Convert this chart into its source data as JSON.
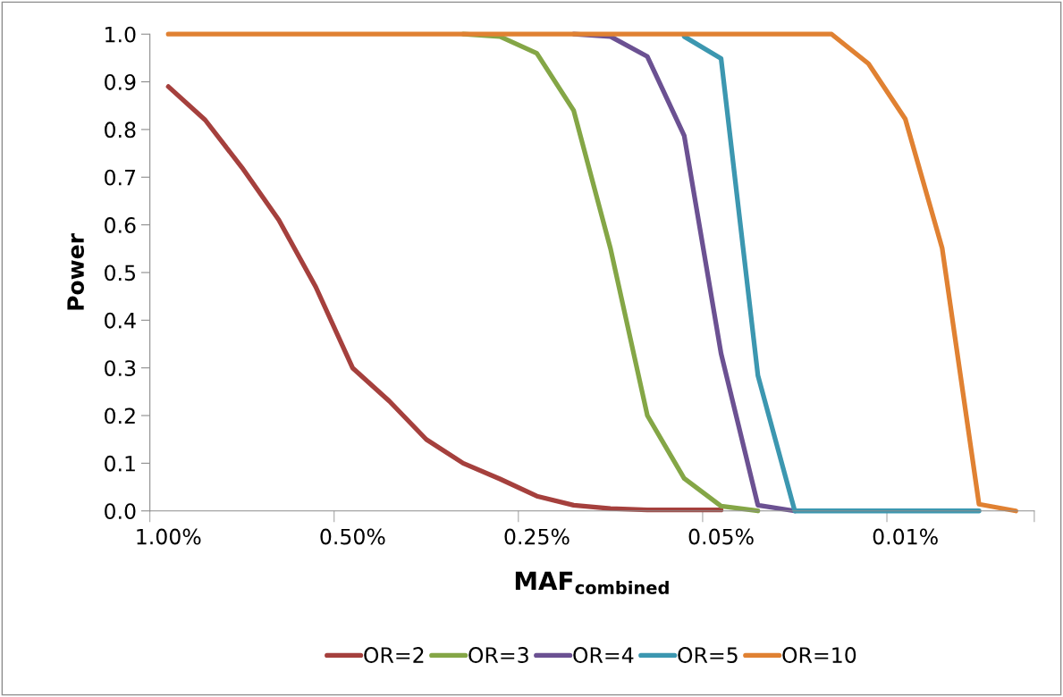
{
  "chart_data": {
    "type": "line",
    "xlabel": "MAF$_{combined}$",
    "ylabel": "Power",
    "categories": [
      "1.00%",
      null,
      null,
      null,
      null,
      "0.50%",
      null,
      null,
      null,
      null,
      "0.25%",
      null,
      null,
      null,
      null,
      "0.05%",
      null,
      null,
      null,
      null,
      "0.01%",
      null,
      null,
      null
    ],
    "series": [
      {
        "name": "OR=2",
        "color": "#a5403d",
        "values": [
          0.89,
          0.82,
          0.72,
          0.61,
          0.47,
          0.3,
          0.23,
          0.15,
          0.1,
          0.067,
          0.031,
          0.012,
          0.005,
          0.002,
          0.002,
          0.002,
          null,
          null,
          null,
          null,
          null,
          null,
          null,
          null
        ]
      },
      {
        "name": "OR=3",
        "color": "#84a646",
        "values": [
          null,
          null,
          null,
          null,
          null,
          null,
          null,
          null,
          1.0,
          0.995,
          0.96,
          0.84,
          0.55,
          0.2,
          0.068,
          0.01,
          0.0,
          null,
          null,
          null,
          null,
          null,
          null,
          null
        ]
      },
      {
        "name": "OR=4",
        "color": "#6b5192",
        "values": [
          null,
          null,
          null,
          null,
          null,
          null,
          null,
          null,
          null,
          null,
          null,
          1.0,
          0.995,
          0.953,
          0.787,
          0.33,
          0.012,
          0.0,
          null,
          null,
          null,
          null,
          null,
          null
        ]
      },
      {
        "name": "OR=5",
        "color": "#3c97b0",
        "values": [
          null,
          null,
          null,
          null,
          null,
          null,
          null,
          null,
          null,
          null,
          null,
          null,
          null,
          null,
          0.995,
          0.949,
          0.284,
          0.0,
          0.0,
          0.0,
          0.0,
          0.0,
          0.0,
          null
        ]
      },
      {
        "name": "OR=10",
        "color": "#e08132",
        "values": [
          1.0,
          1.0,
          1.0,
          1.0,
          1.0,
          1.0,
          1.0,
          1.0,
          1.0,
          1.0,
          1.0,
          1.0,
          1.0,
          1.0,
          1.0,
          1.0,
          1.0,
          1.0,
          1.0,
          0.938,
          0.822,
          0.551,
          0.014,
          0.0
        ]
      }
    ],
    "ylim": [
      0,
      1.0
    ],
    "yticks": [
      {
        "value": 0,
        "label": "0.0"
      },
      {
        "value": 0.1,
        "label": "0.1"
      },
      {
        "value": 0.2,
        "label": "0.2"
      },
      {
        "value": 0.3,
        "label": "0.3"
      },
      {
        "value": 0.4,
        "label": "0.4"
      },
      {
        "value": 0.5,
        "label": "0.5"
      },
      {
        "value": 0.6,
        "label": "0.6"
      },
      {
        "value": 0.7,
        "label": "0.7"
      },
      {
        "value": 0.8,
        "label": "0.8"
      },
      {
        "value": 0.9,
        "label": "0.9"
      },
      {
        "value": 1.0,
        "label": "1.0"
      }
    ],
    "legend": "bottom",
    "grid": false,
    "line_style": "solid",
    "marker": "none"
  }
}
